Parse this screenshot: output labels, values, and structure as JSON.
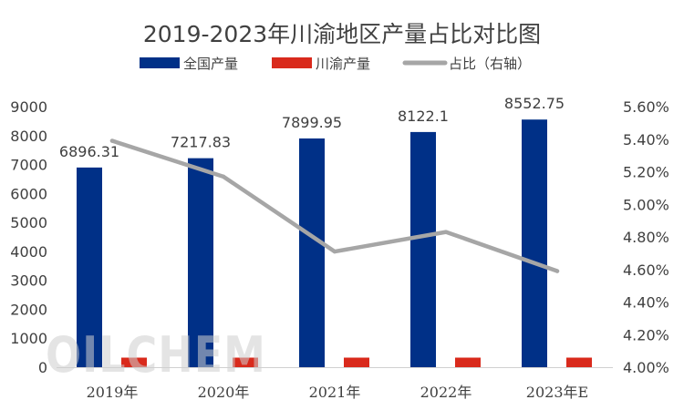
{
  "chart_data": {
    "type": "bar",
    "title": "2019-2023年川渝地区产量占比对比图",
    "categories": [
      "2019年",
      "2020年",
      "2021年",
      "2022年",
      "2023年E"
    ],
    "series": [
      {
        "name": "全国产量",
        "type": "bar",
        "axis": "left",
        "values": [
          6896.31,
          7217.83,
          7899.95,
          8122.1,
          8552.75
        ],
        "data_labels": [
          "6896.31",
          "7217.83",
          "7899.95",
          "8122.1",
          "8552.75"
        ]
      },
      {
        "name": "川渝产量",
        "type": "bar",
        "axis": "left",
        "values": [
          330,
          330,
          330,
          330,
          330
        ]
      },
      {
        "name": "占比（右轴）",
        "type": "line",
        "axis": "right",
        "values": [
          5.39,
          5.17,
          4.71,
          4.83,
          4.59
        ]
      }
    ],
    "y_left": {
      "min": 0,
      "max": 9000,
      "ticks": [
        "0",
        "1000",
        "2000",
        "3000",
        "4000",
        "5000",
        "6000",
        "7000",
        "8000",
        "9000"
      ]
    },
    "y_right": {
      "min": 4.0,
      "max": 5.6,
      "unit": "%",
      "ticks": [
        "4.00%",
        "4.20%",
        "4.40%",
        "4.60%",
        "4.80%",
        "5.00%",
        "5.20%",
        "5.40%",
        "5.60%"
      ]
    },
    "legend_position": "top-center",
    "grid": false
  },
  "colors": {
    "national": "#003087",
    "sichuan_chongqing": "#d92a1c",
    "ratio_line": "#a6a6a6",
    "axis": "#d0d0d0",
    "text": "#404040"
  },
  "watermark": "OILCHEM"
}
